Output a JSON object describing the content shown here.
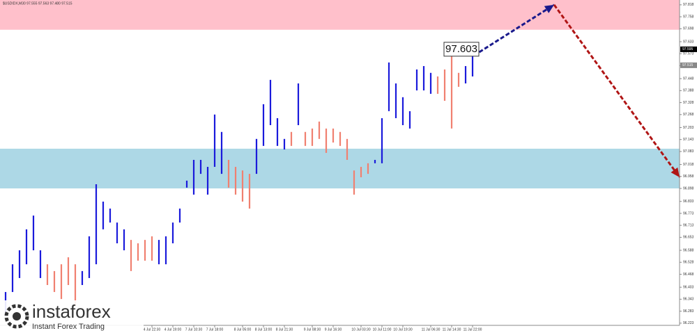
{
  "chart_data": {
    "type": "bar-range",
    "title": "$USDIDX,M30 97.555 97.563 97.480 97.515",
    "categories": [
      null,
      null,
      null,
      null,
      null,
      null,
      null,
      null,
      null,
      null,
      null,
      null,
      null,
      null,
      null,
      null,
      null,
      null,
      null,
      null,
      null,
      "4 Jul 22:30",
      null,
      null,
      "4 Jul 19:00",
      null,
      null,
      "7 Jul 10:30",
      null,
      null,
      "7 Jul 18:00",
      null,
      null,
      null,
      "8 Jul 05:00",
      null,
      null,
      "8 Jul 13:00",
      null,
      null,
      "8 Jul 21:30",
      null,
      null,
      null,
      "9 Jul 08:30",
      null,
      null,
      "9 Jul 16:30",
      null,
      null,
      null,
      "10 Jul 03:30",
      null,
      null,
      "10 Jul 11:00",
      null,
      null,
      "10 Jul 19:30",
      null,
      null,
      null,
      "11 Jul 06:30",
      null,
      null,
      "11 Jul 14:30",
      null,
      null,
      "11 Jul 22:00"
    ],
    "high": [
      96.379,
      96.518,
      96.588,
      96.693,
      96.762,
      96.588,
      96.518,
      96.484,
      96.518,
      96.553,
      96.518,
      96.484,
      96.658,
      96.919,
      96.832,
      96.797,
      96.727,
      96.693,
      96.64,
      96.623,
      96.64,
      96.658,
      96.64,
      96.658,
      96.727,
      96.797,
      96.937,
      97.041,
      97.041,
      97.006,
      97.268,
      97.181,
      97.041,
      97.006,
      96.988,
      96.971,
      97.146,
      97.32,
      97.442,
      97.25,
      97.146,
      97.181,
      97.424,
      97.181,
      97.198,
      97.233,
      97.198,
      97.198,
      97.181,
      97.146,
      96.988,
      97.006,
      97.024,
      97.041,
      97.25,
      97.529,
      97.424,
      97.355,
      97.285,
      97.494,
      97.511,
      97.477,
      97.459,
      97.494,
      97.581,
      97.477,
      97.511,
      97.564
    ],
    "low": [
      96.257,
      96.379,
      96.449,
      96.518,
      96.588,
      96.449,
      96.414,
      96.379,
      96.344,
      96.414,
      96.309,
      96.414,
      96.449,
      96.518,
      96.693,
      96.727,
      96.623,
      96.588,
      96.484,
      96.536,
      96.536,
      96.536,
      96.518,
      96.518,
      96.623,
      96.727,
      96.902,
      96.867,
      96.971,
      96.867,
      97.006,
      96.971,
      96.902,
      96.867,
      96.832,
      96.797,
      96.971,
      97.111,
      97.215,
      97.111,
      97.093,
      97.111,
      97.215,
      97.111,
      97.111,
      97.146,
      97.076,
      97.128,
      97.111,
      97.041,
      96.867,
      96.954,
      96.971,
      97.024,
      97.024,
      97.285,
      97.25,
      97.215,
      97.198,
      97.389,
      97.389,
      97.372,
      97.372,
      97.337,
      97.198,
      97.407,
      97.424,
      97.459
    ],
    "bar_colors": [
      "#1a1adb",
      "#1a1adb",
      "#1a1adb",
      "#1a1adb",
      "#1a1adb",
      "#1a1adb",
      "#f08070",
      "#f08070",
      "#f08070",
      "#f08070",
      "#f08070",
      "#1a1adb",
      "#1a1adb",
      "#1a1adb",
      "#1a1adb",
      "#1a1adb",
      "#1a1adb",
      "#1a1adb",
      "#f08070",
      "#f08070",
      "#f08070",
      "#f08070",
      "#1a1adb",
      "#1a1adb",
      "#1a1adb",
      "#1a1adb",
      "#1a1adb",
      "#1a1adb",
      "#1a1adb",
      "#1a1adb",
      "#1a1adb",
      "#1a1adb",
      "#f08070",
      "#f08070",
      "#f08070",
      "#f08070",
      "#1a1adb",
      "#1a1adb",
      "#1a1adb",
      "#1a1adb",
      "#1a1adb",
      "#f08070",
      "#1a1adb",
      "#f08070",
      "#f08070",
      "#f08070",
      "#f08070",
      "#f08070",
      "#f08070",
      "#f08070",
      "#f08070",
      "#f08070",
      "#f08070",
      "#1a1adb",
      "#1a1adb",
      "#1a1adb",
      "#1a1adb",
      "#1a1adb",
      "#1a1adb",
      "#1a1adb",
      "#1a1adb",
      "#1a1adb",
      "#f08070",
      "#f08070",
      "#f08070",
      "#f08070",
      "#1a1adb",
      "#1a1adb"
    ],
    "xlim": [
      -0.8,
      96.7
    ],
    "ylim": [
      96.212,
      97.842
    ],
    "yticks": [
      {
        "value": 97.818,
        "label": "97.818"
      },
      97.758,
      {
        "value": 97.698,
        "label": "97.698"
      },
      97.633,
      97.573,
      97.513,
      97.448,
      97.388,
      97.328,
      97.268,
      97.203,
      97.143,
      97.083,
      97.018,
      96.958,
      {
        "value": 96.898,
        "label": "96.898"
      },
      96.833,
      96.773,
      96.713,
      96.653,
      96.588,
      96.528,
      96.468,
      96.403,
      96.343,
      96.283,
      96.223
    ],
    "zones": [
      {
        "from": 97.693,
        "to": 97.842,
        "color": "#ffc0cb"
      },
      {
        "from": 96.898,
        "to": 97.097,
        "color": "#add8e6"
      }
    ],
    "arrows": [
      {
        "x": [
          67.2,
          78.7
        ],
        "y": [
          97.564,
          97.818
        ],
        "color": "#1a1a8c"
      },
      {
        "x": [
          78.7,
          96.7
        ],
        "y": [
          97.818,
          96.954
        ],
        "color": "#b01515"
      }
    ],
    "price_label": "97.603",
    "price_markers": [
      {
        "value": 97.595,
        "color": "#000000"
      },
      {
        "value": 97.515,
        "color": "#888888"
      }
    ],
    "logo": {
      "name": "instaforex",
      "tagline": "Instant Forex Trading"
    }
  }
}
